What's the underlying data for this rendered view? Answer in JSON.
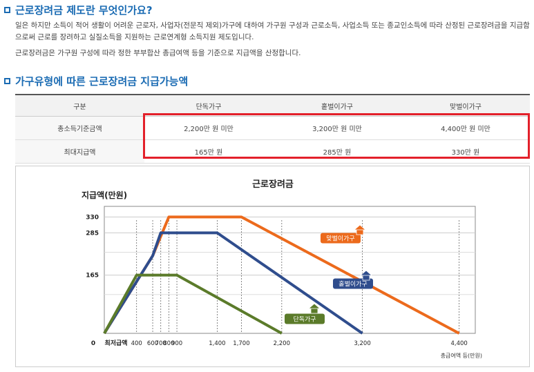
{
  "section1": {
    "title": "근로장려금 제도란 무엇인가요?",
    "para1": "일은 하지만 소득이 적어 생활이 어려운 근로자, 사업자(전문직 제외)가구에 대하여 가구원 구성과 근로소득, 사업소득 또는 종교인소득에 따라 산정된 근로장려금을 지급함으로써 근로를 장려하고 실질소득을 지원하는 근로연계형 소득지원 제도입니다.",
    "para2": "근로장려금은 가구원 구성에 따라 정한 부부합산 총급여액 등을 기준으로 지급액을 산정합니다."
  },
  "section2": {
    "title": "가구유형에 따른 근로장려금 지급가능액"
  },
  "table": {
    "headers": [
      "구분",
      "단독가구",
      "홑벌이가구",
      "맞벌이가구"
    ],
    "rows": [
      {
        "label": "총소득기준금액",
        "cells": [
          "2,200만 원 미만",
          "3,200만 원 미만",
          "4,400만 원 미만"
        ]
      },
      {
        "label": "최대지급액",
        "cells": [
          "165만 원",
          "285만 원",
          "330만 원"
        ]
      }
    ]
  },
  "chart_data": {
    "type": "line",
    "title": "근로장려금",
    "ylabel": "지급액(만원)",
    "xlabel": "총급여액 등(만원)",
    "x_origin_label": "최저급액",
    "y_origin_label": "0",
    "xlim": [
      0,
      4600
    ],
    "ylim": [
      0,
      360
    ],
    "x_ticks": [
      400,
      600,
      700,
      800,
      900,
      1400,
      1700,
      2200,
      3200,
      4400
    ],
    "x_tick_labels": [
      "400",
      "600",
      "700",
      "800",
      "900",
      "1,400",
      "1,700",
      "2,200",
      "3,200",
      "4,400"
    ],
    "y_ticks": [
      165,
      285,
      330
    ],
    "grid": true,
    "series": [
      {
        "name": "맞벌이가구",
        "color": "#ec6a1c",
        "x": [
          0,
          600,
          800,
          1700,
          4400
        ],
        "y": [
          0,
          220,
          330,
          330,
          0
        ]
      },
      {
        "name": "홑벌이가구",
        "color": "#2f4d8d",
        "x": [
          0,
          600,
          700,
          1400,
          3200
        ],
        "y": [
          0,
          220,
          285,
          285,
          0
        ]
      },
      {
        "name": "단독가구",
        "color": "#5b7b2a",
        "x": [
          0,
          400,
          900,
          2200
        ],
        "y": [
          0,
          165,
          165,
          0
        ]
      }
    ]
  },
  "colors": {
    "accent": "#1a6bb3",
    "highlight": "#e3202a"
  },
  "icons": {
    "section_marker": "square-bullet-icon",
    "series_marker": "house-icon"
  }
}
